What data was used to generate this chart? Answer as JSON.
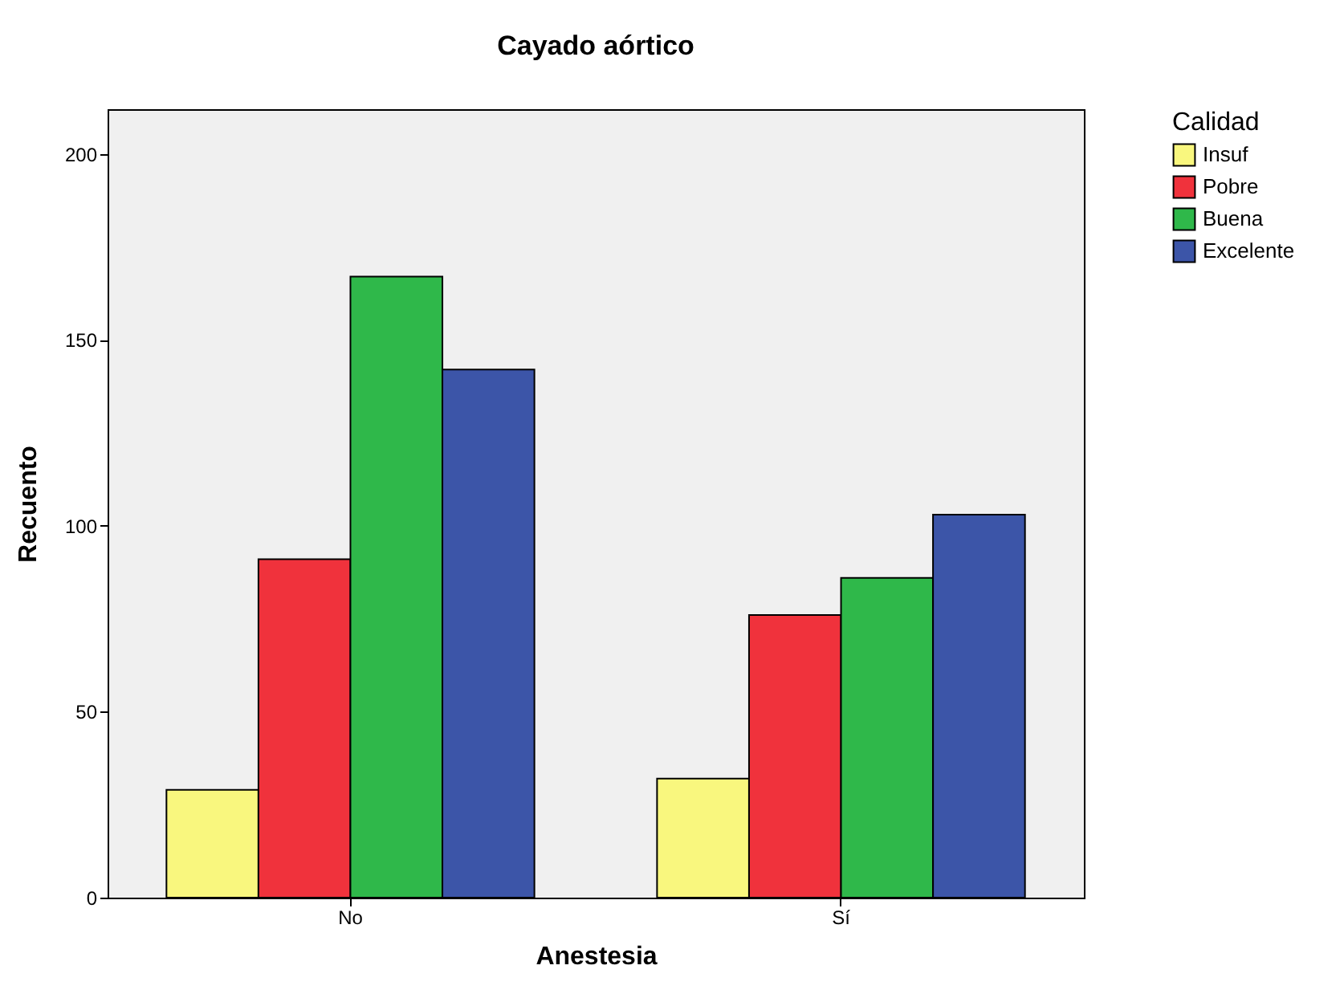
{
  "chart_data": {
    "type": "bar",
    "title": "Cayado aórtico",
    "xlabel": "Anestesia",
    "ylabel": "Recuento",
    "legend_title": "Calidad",
    "categories": [
      "No",
      "Sí"
    ],
    "series": [
      {
        "name": "Insuf",
        "color": "#f9f77e",
        "values": [
          29,
          32
        ]
      },
      {
        "name": "Pobre",
        "color": "#f0323c",
        "values": [
          91,
          76
        ]
      },
      {
        "name": "Buena",
        "color": "#2fb84a",
        "values": [
          167,
          86
        ]
      },
      {
        "name": "Excelente",
        "color": "#3c55a8",
        "values": [
          142,
          103
        ]
      }
    ],
    "ylim": [
      0,
      212
    ],
    "yticks": [
      0,
      50,
      100,
      150,
      200
    ],
    "legend": "top right"
  }
}
